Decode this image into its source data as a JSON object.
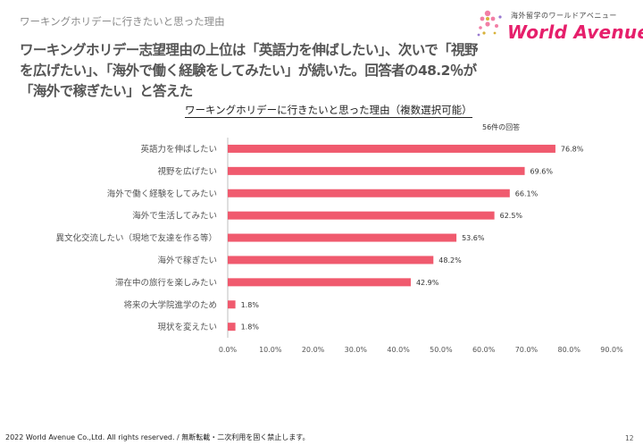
{
  "header": {
    "section_label": "ワーキングホリデーに行きたいと思った理由",
    "headline": "ワーキングホリデー志望理由の上位は「英語力を伸ばしたい」、次いで「視野を広げたい」、「海外で働く経験をしてみたい」が続いた。回答者の48.2％が「海外で稼ぎたい」と答えた"
  },
  "logo": {
    "tagline": "海外留学のワールドアベニュー",
    "brand": "World Avenue"
  },
  "colors": {
    "bar": "#f05a6e",
    "accent": "#e61f6b"
  },
  "chart_data": {
    "type": "bar",
    "orientation": "horizontal",
    "title": "ワーキングホリデーに行きたいと思った理由（複数選択可能）",
    "note": "56件の回答",
    "categories": [
      "英語力を伸ばしたい",
      "視野を広げたい",
      "海外で働く経験をしてみたい",
      "海外で生活してみたい",
      "異文化交流したい（現地で友達を作る等）",
      "海外で稼ぎたい",
      "滞在中の旅行を楽しみたい",
      "将来の大学院進学のため",
      "現状を変えたい"
    ],
    "values": [
      76.8,
      69.6,
      66.1,
      62.5,
      53.6,
      48.2,
      42.9,
      1.8,
      1.8
    ],
    "data_labels": [
      "76.8%",
      "69.6%",
      "66.1%",
      "62.5%",
      "53.6%",
      "48.2%",
      "42.9%",
      "1.8%",
      "1.8%"
    ],
    "xlim": [
      0,
      90
    ],
    "xticks": [
      "0.0%",
      "10.0%",
      "20.0%",
      "30.0%",
      "40.0%",
      "50.0%",
      "60.0%",
      "70.0%",
      "80.0%",
      "90.0%"
    ],
    "xlabel": "",
    "ylabel": "",
    "grid": false
  },
  "footer": {
    "copyright": "2022 World Avenue Co.,Ltd. All rights reserved. / 無断転載・二次利用を固く禁止します。",
    "page_number": "12"
  }
}
